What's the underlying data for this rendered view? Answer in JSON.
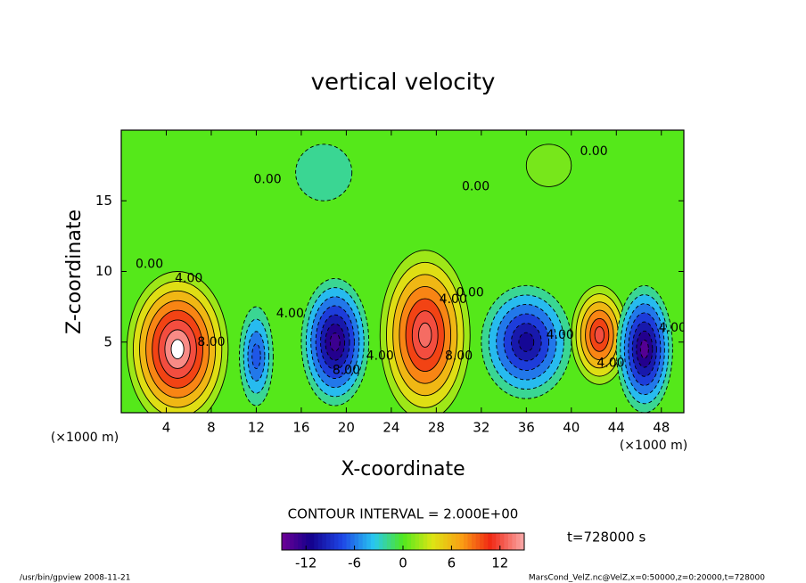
{
  "chart_data": {
    "type": "contour",
    "title": "vertical velocity",
    "x_label": "X-coordinate",
    "y_label": "Z-coordinate",
    "x_unit": "(×1000 m)",
    "y_unit": "(×1000 m)",
    "xlim": [
      0,
      50
    ],
    "xticks": [
      4,
      8,
      12,
      16,
      20,
      24,
      28,
      32,
      36,
      40,
      44,
      48
    ],
    "ylim": [
      0,
      20
    ],
    "yticks": [
      5,
      10,
      15
    ],
    "clim": [
      -15,
      15
    ],
    "cticks": [
      -12,
      -6,
      0,
      6,
      12
    ],
    "contour_interval": {
      "value": 2,
      "label": "CONTOUR INTERVAL = 2.000E+00"
    },
    "cells": [
      {
        "x": 5,
        "z": 4.5,
        "value": 16,
        "width": 9,
        "height": 11
      },
      {
        "x": 12,
        "z": 4,
        "value": -7,
        "width": 3,
        "height": 7
      },
      {
        "x": 19,
        "z": 5,
        "value": -13,
        "width": 6,
        "height": 9
      },
      {
        "x": 27,
        "z": 5.5,
        "value": 13,
        "width": 8,
        "height": 12
      },
      {
        "x": 36,
        "z": 5,
        "value": -11,
        "width": 8,
        "height": 8
      },
      {
        "x": 42.5,
        "z": 5.5,
        "value": 12,
        "width": 5,
        "height": 7
      },
      {
        "x": 46.5,
        "z": 4.5,
        "value": -14,
        "width": 5,
        "height": 9
      },
      {
        "x": 18,
        "z": 17,
        "value": -2,
        "width": 5,
        "height": 4
      },
      {
        "x": 38,
        "z": 17.5,
        "value": 1,
        "width": 4,
        "height": 3
      }
    ],
    "contour_labels": [
      {
        "text": "4.00",
        "x": 6,
        "z": 9.5
      },
      {
        "text": "0.00",
        "x": 2.5,
        "z": 10.5
      },
      {
        "text": "8.00",
        "x": 8,
        "z": 5
      },
      {
        "text": "4.00",
        "x": 15,
        "z": 7
      },
      {
        "text": "8.00",
        "x": 20,
        "z": 3
      },
      {
        "text": "4.00",
        "x": 23,
        "z": 4
      },
      {
        "text": "0.00",
        "x": 13,
        "z": 16.5
      },
      {
        "text": "8.00",
        "x": 30,
        "z": 4
      },
      {
        "text": "4.00",
        "x": 29.5,
        "z": 8
      },
      {
        "text": "0.00",
        "x": 31,
        "z": 8.5
      },
      {
        "text": "0.00",
        "x": 31.5,
        "z": 16
      },
      {
        "text": "4.00",
        "x": 39,
        "z": 5.5
      },
      {
        "text": "4.00",
        "x": 43.5,
        "z": 3.5
      },
      {
        "text": "4.00",
        "x": 49,
        "z": 6
      },
      {
        "text": "0.00",
        "x": 42,
        "z": 18.5
      }
    ],
    "time_label": "t=728000 s",
    "footer_left": "/usr/bin/gpview  2008-11-21",
    "footer_right": "MarsCond_VelZ.nc@VelZ,x=0:50000,z=0:20000,t=728000"
  }
}
